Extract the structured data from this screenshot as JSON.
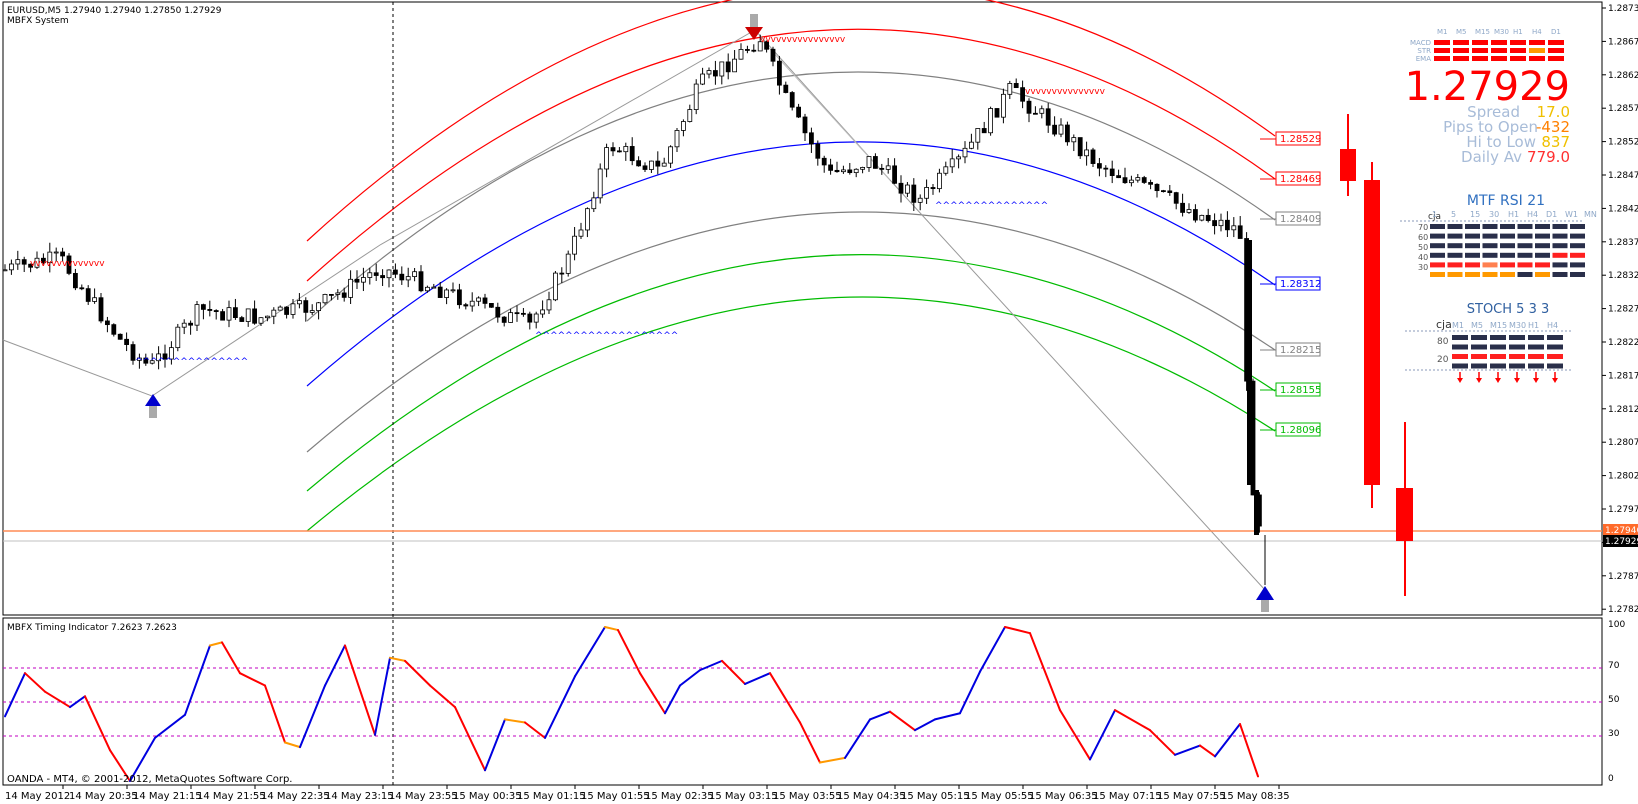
{
  "header": {
    "symbol_line": "EURUSD,M5  1.27940 1.27940 1.27850 1.27929",
    "system_name": "MBFX System"
  },
  "price_axis": {
    "ticks": [
      "1.28730",
      "1.28675",
      "1.28620",
      "1.28575",
      "1.28525",
      "1.28475",
      "1.28425",
      "1.28375",
      "1.28325",
      "1.28275",
      "1.28225",
      "1.28175",
      "1.28125",
      "1.28075",
      "1.28025",
      "1.27975",
      "1.27925",
      "1.27875",
      "1.27825"
    ],
    "ask_label": "1.27946",
    "bid_label": "1.27929"
  },
  "channel_labels": [
    {
      "text": "1.28529",
      "color": "#ff0000"
    },
    {
      "text": "1.28469",
      "color": "#ff0000"
    },
    {
      "text": "1.28409",
      "color": "#808080"
    },
    {
      "text": "1.28312",
      "color": "#0000ff"
    },
    {
      "text": "1.28215",
      "color": "#808080"
    },
    {
      "text": "1.28155",
      "color": "#00bb00"
    },
    {
      "text": "1.28096",
      "color": "#00bb00"
    }
  ],
  "dashboard": {
    "tf_headers": [
      "M1",
      "M5",
      "M15",
      "M30",
      "H1",
      "H4",
      "D1"
    ],
    "row_labels": [
      "MACD",
      "STR",
      "EMA"
    ],
    "price": "1.27929",
    "spread_label": "Spread",
    "spread_value": "17.0",
    "pips_label": "Pips to Open",
    "pips_value": "-432",
    "hilo_label": "Hi to Low",
    "hilo_value": "837",
    "daily_label": "Daily Av",
    "daily_value": "779.0"
  },
  "rsi_panel": {
    "title": "MTF RSI  21",
    "owner": "cja",
    "tf_headers": [
      "1",
      "5",
      "15",
      "30",
      "H1",
      "H4",
      "D1",
      "W1",
      "MN"
    ],
    "levels": [
      "70",
      "60",
      "50",
      "40",
      "30"
    ]
  },
  "stoch_panel": {
    "title": "STOCH  5 3 3",
    "owner": "cja",
    "tf_headers": [
      "M1",
      "M5",
      "M15",
      "M30",
      "H1",
      "H4"
    ],
    "levels": [
      "80",
      "20"
    ]
  },
  "indicator": {
    "title": "MBFX Timing Indicator 7.2623 7.2623",
    "scale": [
      "100",
      "70",
      "50",
      "30",
      "0"
    ],
    "copyright": "OANDA - MT4, © 2001-2012, MetaQuotes Software Corp."
  },
  "time_axis": [
    "14 May 2012",
    "14 May 20:35",
    "14 May 21:15",
    "14 May 21:55",
    "14 May 22:35",
    "14 May 23:15",
    "14 May 23:55",
    "15 May 00:35",
    "15 May 01:15",
    "15 May 01:55",
    "15 May 02:35",
    "15 May 03:15",
    "15 May 03:55",
    "15 May 04:35",
    "15 May 05:15",
    "15 May 05:55",
    "15 May 06:35",
    "15 May 07:15",
    "15 May 07:55",
    "15 May 08:35"
  ]
}
